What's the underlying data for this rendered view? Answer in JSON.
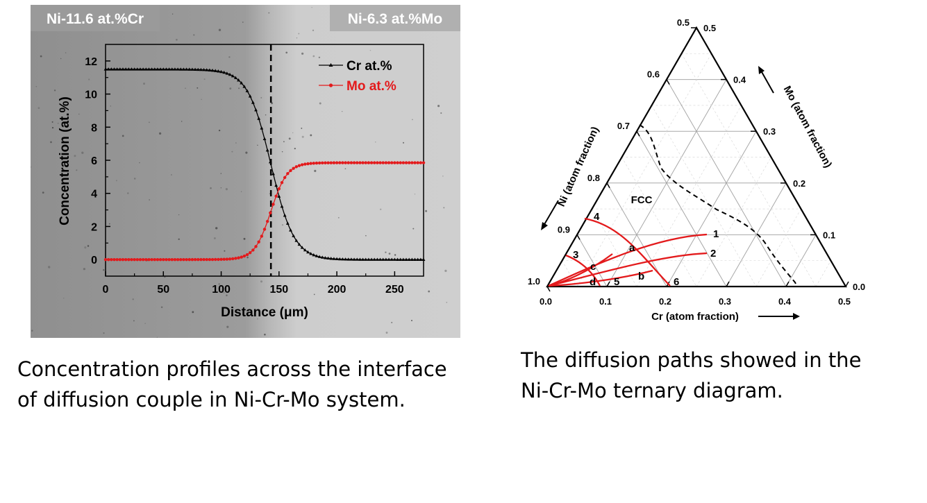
{
  "chart_data": [
    {
      "type": "line",
      "left_label": "Ni-11.6 at.%Cr",
      "right_label": "Ni-6.3 at.%Mo",
      "xlabel": "Distance (μm)",
      "ylabel": "Concentration (at.%)",
      "xlim": [
        0,
        275
      ],
      "ylim": [
        -1,
        13
      ],
      "x_ticks": [
        0,
        50,
        100,
        150,
        200,
        250
      ],
      "y_ticks": [
        0,
        2,
        4,
        6,
        8,
        10,
        12
      ],
      "interface_x": 143,
      "legend_position": "top-right",
      "series": [
        {
          "name": "Cr  at.%",
          "color": "#000000",
          "marker": "triangle",
          "x_start": 0,
          "x_end": 275,
          "x_step": 2.5,
          "profile": {
            "left": 11.5,
            "right": 0,
            "center": 143,
            "width": 10
          }
        },
        {
          "name": "Mo at.%",
          "color": "#e31a1c",
          "marker": "circle",
          "x_start": 0,
          "x_end": 275,
          "x_step": 2.5,
          "profile": {
            "left": 0,
            "right": 5.85,
            "center": 143,
            "width": 7
          }
        }
      ]
    },
    {
      "type": "diagram",
      "bottom_axis_label": "Cr (atom fraction)",
      "left_axis_label": "Ni (atom fraction)",
      "right_axis_label": "Mo (atom fraction)",
      "bottom_ticks": [
        "0.0",
        "0.1",
        "0.2",
        "0.3",
        "0.4",
        "0.5"
      ],
      "left_ticks": [
        "1.0",
        "0.9",
        "0.8",
        "0.7",
        "0.6",
        "0.5"
      ],
      "right_ticks": [
        "0.0",
        "0.1",
        "0.2",
        "0.3",
        "0.4",
        "0.5"
      ],
      "phase_label": "FCC",
      "path_labels": [
        "1",
        "2",
        "3",
        "4",
        "5",
        "6",
        "a",
        "b",
        "c",
        "d"
      ],
      "path_color": "#e31a1c"
    }
  ],
  "captions": {
    "left": [
      "Concentration profiles across the interface",
      "of diffusion couple in Ni-Cr-Mo system."
    ],
    "right": [
      "The diffusion paths showed in the",
      "Ni-Cr-Mo ternary diagram."
    ]
  }
}
